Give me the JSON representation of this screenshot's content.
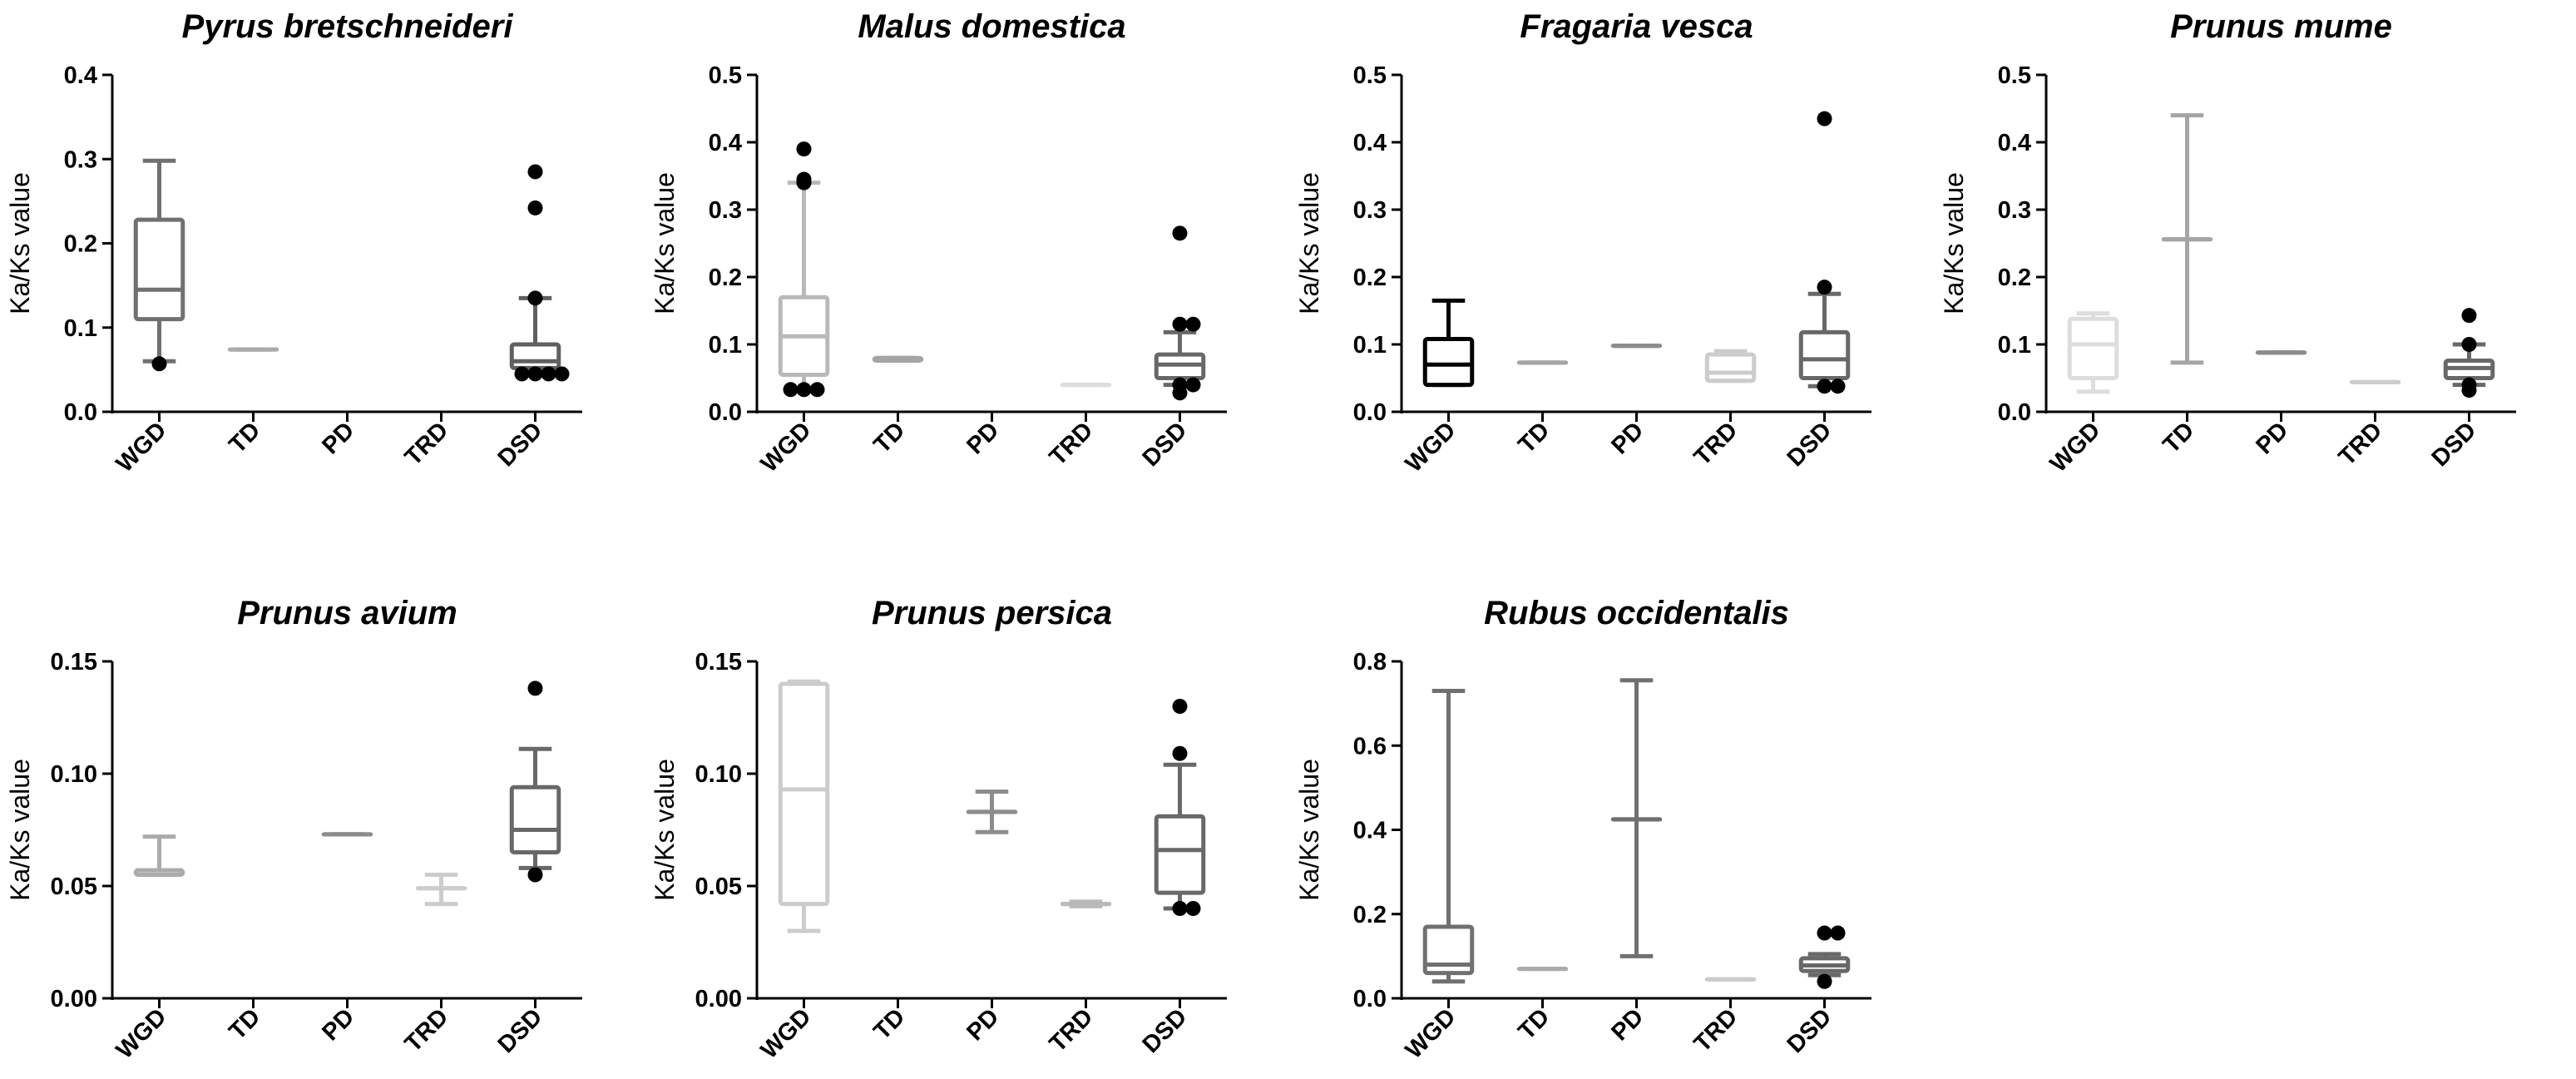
{
  "figure": {
    "ylabel": "Ka/Ks value",
    "categories": [
      "WGD",
      "TD",
      "PD",
      "TRD",
      "DSD"
    ]
  },
  "chart_data": [
    {
      "type": "box",
      "title": "Pyrus bretschneideri",
      "ylabel": "Ka/Ks value",
      "ylim": [
        0,
        0.4
      ],
      "yticks": [
        0,
        0.1,
        0.2,
        0.3,
        0.4
      ],
      "ytick_labels": [
        "0.0",
        "0.1",
        "0.2",
        "0.3",
        "0.4"
      ],
      "categories": [
        "WGD",
        "TD",
        "PD",
        "TRD",
        "DSD"
      ],
      "colors": [
        "#707070",
        "#ababab",
        "#ababab",
        "#ababab",
        "#606060"
      ],
      "boxes": [
        {
          "label": "WGD",
          "min": 0.06,
          "q1": 0.11,
          "median": 0.145,
          "q3": 0.228,
          "max": 0.298,
          "outliers": [
            0.057
          ]
        },
        {
          "label": "TD",
          "min": 0.074,
          "q1": 0.074,
          "median": 0.074,
          "q3": 0.074,
          "max": 0.074,
          "outliers": []
        },
        null,
        null,
        {
          "label": "DSD",
          "min": 0.045,
          "q1": 0.052,
          "median": 0.06,
          "q3": 0.08,
          "max": 0.135,
          "outliers": [
            0.045,
            0.045,
            0.045,
            0.045,
            0.135,
            0.242,
            0.285
          ]
        }
      ]
    },
    {
      "type": "box",
      "title": "Malus domestica",
      "ylabel": "Ka/Ks value",
      "ylim": [
        0,
        0.5
      ],
      "yticks": [
        0,
        0.1,
        0.2,
        0.3,
        0.4,
        0.5
      ],
      "ytick_labels": [
        "0.0",
        "0.1",
        "0.2",
        "0.3",
        "0.4",
        "0.5"
      ],
      "categories": [
        "WGD",
        "TD",
        "PD",
        "TRD",
        "DSD"
      ],
      "colors": [
        "#b9b9b9",
        "#a5a5a5",
        "#a5a5a5",
        "#dddddd",
        "#686868"
      ],
      "boxes": [
        {
          "label": "WGD",
          "min": 0.035,
          "q1": 0.055,
          "median": 0.112,
          "q3": 0.17,
          "max": 0.34,
          "outliers": [
            0.033,
            0.033,
            0.033,
            0.34,
            0.345,
            0.39
          ]
        },
        {
          "label": "TD",
          "min": 0.076,
          "q1": 0.076,
          "median": 0.078,
          "q3": 0.08,
          "max": 0.08,
          "outliers": []
        },
        null,
        {
          "label": "TRD",
          "min": 0.04,
          "q1": 0.04,
          "median": 0.04,
          "q3": 0.04,
          "max": 0.04,
          "outliers": []
        },
        {
          "label": "DSD",
          "min": 0.04,
          "q1": 0.05,
          "median": 0.07,
          "q3": 0.085,
          "max": 0.118,
          "outliers": [
            0.028,
            0.04,
            0.04,
            0.13,
            0.13,
            0.265
          ]
        }
      ]
    },
    {
      "type": "box",
      "title": "Fragaria vesca",
      "ylabel": "Ka/Ks value",
      "ylim": [
        0,
        0.5
      ],
      "yticks": [
        0,
        0.1,
        0.2,
        0.3,
        0.4,
        0.5
      ],
      "ytick_labels": [
        "0.0",
        "0.1",
        "0.2",
        "0.3",
        "0.4",
        "0.5"
      ],
      "categories": [
        "WGD",
        "TD",
        "PD",
        "TRD",
        "DSD"
      ],
      "colors": [
        "#000000",
        "#a5a5a5",
        "#8c8c8c",
        "#cccccc",
        "#686868"
      ],
      "boxes": [
        {
          "label": "WGD",
          "min": 0.04,
          "q1": 0.04,
          "median": 0.07,
          "q3": 0.108,
          "max": 0.165,
          "outliers": []
        },
        {
          "label": "TD",
          "min": 0.073,
          "q1": 0.073,
          "median": 0.073,
          "q3": 0.073,
          "max": 0.073,
          "outliers": []
        },
        {
          "label": "PD",
          "min": 0.098,
          "q1": 0.098,
          "median": 0.098,
          "q3": 0.098,
          "max": 0.098,
          "outliers": []
        },
        {
          "label": "TRD",
          "min": 0.046,
          "q1": 0.046,
          "median": 0.058,
          "q3": 0.085,
          "max": 0.09,
          "outliers": []
        },
        {
          "label": "DSD",
          "min": 0.038,
          "q1": 0.05,
          "median": 0.078,
          "q3": 0.118,
          "max": 0.175,
          "outliers": [
            0.038,
            0.038,
            0.185,
            0.435
          ]
        }
      ]
    },
    {
      "type": "box",
      "title": "Prunus mume",
      "ylabel": "Ka/Ks value",
      "ylim": [
        0,
        0.5
      ],
      "yticks": [
        0,
        0.1,
        0.2,
        0.3,
        0.4,
        0.5
      ],
      "ytick_labels": [
        "0.0",
        "0.1",
        "0.2",
        "0.3",
        "0.4",
        "0.5"
      ],
      "categories": [
        "WGD",
        "TD",
        "PD",
        "TRD",
        "DSD"
      ],
      "colors": [
        "#dddddd",
        "#a5a5a5",
        "#8c8c8c",
        "#cccccc",
        "#686868"
      ],
      "boxes": [
        {
          "label": "WGD",
          "min": 0.03,
          "q1": 0.05,
          "median": 0.1,
          "q3": 0.138,
          "max": 0.146,
          "outliers": []
        },
        {
          "label": "TD",
          "min": 0.073,
          "q1": 0.256,
          "median": 0.256,
          "q3": 0.256,
          "max": 0.44,
          "outliers": []
        },
        {
          "label": "PD",
          "min": 0.088,
          "q1": 0.088,
          "median": 0.088,
          "q3": 0.088,
          "max": 0.088,
          "outliers": []
        },
        {
          "label": "TRD",
          "min": 0.044,
          "q1": 0.044,
          "median": 0.044,
          "q3": 0.044,
          "max": 0.044,
          "outliers": []
        },
        {
          "label": "DSD",
          "min": 0.04,
          "q1": 0.05,
          "median": 0.065,
          "q3": 0.076,
          "max": 0.1,
          "outliers": [
            0.032,
            0.04,
            0.1,
            0.143
          ]
        }
      ]
    },
    {
      "type": "box",
      "title": "Prunus avium",
      "ylabel": "Ka/Ks value",
      "ylim": [
        0,
        0.15
      ],
      "yticks": [
        0,
        0.05,
        0.1,
        0.15
      ],
      "ytick_labels": [
        "0.00",
        "0.05",
        "0.10",
        "0.15"
      ],
      "categories": [
        "WGD",
        "TD",
        "PD",
        "TRD",
        "DSD"
      ],
      "colors": [
        "#ababab",
        "#ababab",
        "#8c8c8c",
        "#cccccc",
        "#686868"
      ],
      "boxes": [
        {
          "label": "WGD",
          "min": 0.055,
          "q1": 0.055,
          "median": 0.057,
          "q3": 0.057,
          "max": 0.072,
          "outliers": []
        },
        null,
        {
          "label": "PD",
          "min": 0.073,
          "q1": 0.073,
          "median": 0.073,
          "q3": 0.073,
          "max": 0.073,
          "outliers": []
        },
        {
          "label": "TRD",
          "min": 0.042,
          "q1": 0.049,
          "median": 0.049,
          "q3": 0.049,
          "max": 0.055,
          "outliers": []
        },
        {
          "label": "DSD",
          "min": 0.058,
          "q1": 0.065,
          "median": 0.075,
          "q3": 0.094,
          "max": 0.111,
          "outliers": [
            0.055,
            0.138
          ]
        }
      ]
    },
    {
      "type": "box",
      "title": "Prunus persica",
      "ylabel": "Ka/Ks value",
      "ylim": [
        0,
        0.15
      ],
      "yticks": [
        0,
        0.05,
        0.1,
        0.15
      ],
      "ytick_labels": [
        "0.00",
        "0.05",
        "0.10",
        "0.15"
      ],
      "categories": [
        "WGD",
        "TD",
        "PD",
        "TRD",
        "DSD"
      ],
      "colors": [
        "#cccccc",
        "#ababab",
        "#8c8c8c",
        "#b9b9b9",
        "#686868"
      ],
      "boxes": [
        {
          "label": "WGD",
          "min": 0.03,
          "q1": 0.042,
          "median": 0.093,
          "q3": 0.14,
          "max": 0.141,
          "outliers": []
        },
        null,
        {
          "label": "PD",
          "min": 0.074,
          "q1": 0.083,
          "median": 0.083,
          "q3": 0.083,
          "max": 0.092,
          "outliers": []
        },
        {
          "label": "TRD",
          "min": 0.041,
          "q1": 0.042,
          "median": 0.042,
          "q3": 0.042,
          "max": 0.043,
          "outliers": []
        },
        {
          "label": "DSD",
          "min": 0.04,
          "q1": 0.047,
          "median": 0.066,
          "q3": 0.081,
          "max": 0.104,
          "outliers": [
            0.04,
            0.04,
            0.109,
            0.13
          ]
        }
      ]
    },
    {
      "type": "box",
      "title": "Rubus occidentalis",
      "ylabel": "Ka/Ks value",
      "ylim": [
        0,
        0.8
      ],
      "yticks": [
        0,
        0.2,
        0.4,
        0.6,
        0.8
      ],
      "ytick_labels": [
        "0.0",
        "0.2",
        "0.4",
        "0.6",
        "0.8"
      ],
      "categories": [
        "WGD",
        "TD",
        "PD",
        "TRD",
        "DSD"
      ],
      "colors": [
        "#707070",
        "#ababab",
        "#707070",
        "#cccccc",
        "#686868"
      ],
      "boxes": [
        {
          "label": "WGD",
          "min": 0.04,
          "q1": 0.06,
          "median": 0.08,
          "q3": 0.17,
          "max": 0.73,
          "outliers": []
        },
        {
          "label": "TD",
          "min": 0.07,
          "q1": 0.07,
          "median": 0.07,
          "q3": 0.07,
          "max": 0.07,
          "outliers": []
        },
        {
          "label": "PD",
          "min": 0.1,
          "q1": 0.425,
          "median": 0.425,
          "q3": 0.425,
          "max": 0.755,
          "outliers": []
        },
        {
          "label": "TRD",
          "min": 0.045,
          "q1": 0.045,
          "median": 0.045,
          "q3": 0.045,
          "max": 0.045,
          "outliers": []
        },
        {
          "label": "DSD",
          "min": 0.055,
          "q1": 0.065,
          "median": 0.078,
          "q3": 0.095,
          "max": 0.105,
          "outliers": [
            0.04,
            0.155,
            0.155
          ]
        }
      ]
    }
  ]
}
